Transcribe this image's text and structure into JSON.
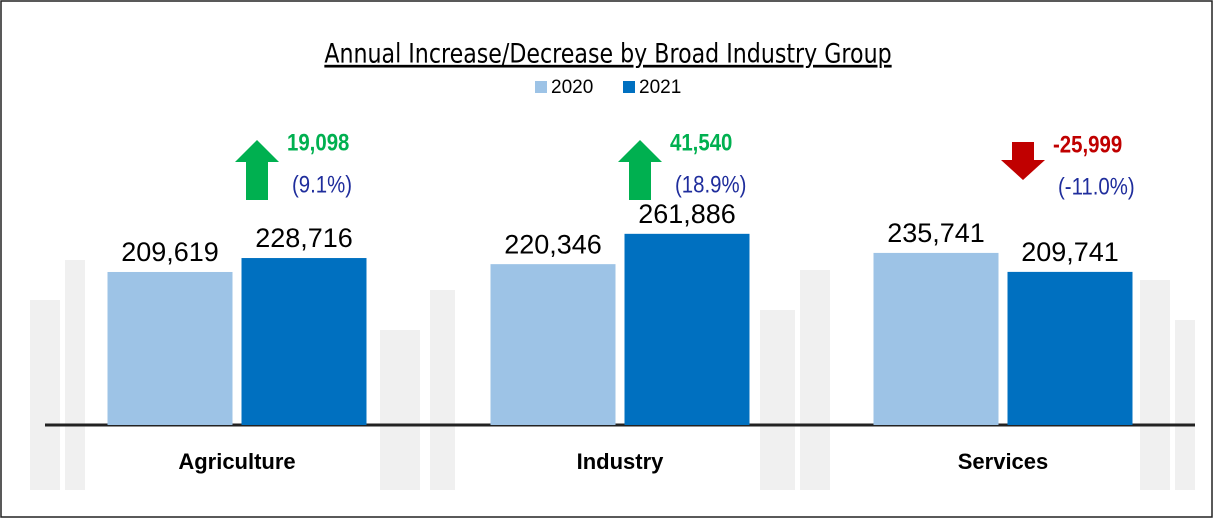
{
  "chart_data": {
    "type": "bar",
    "title": "Annual Increase/Decrease by Broad Industry Group",
    "categories": [
      "Agriculture",
      "Industry",
      "Services"
    ],
    "series": [
      {
        "name": "2020",
        "color": "#9dc3e6",
        "values": [
          209619,
          220346,
          235741
        ],
        "value_labels": [
          "209,619",
          "220,346",
          "235,741"
        ]
      },
      {
        "name": "2021",
        "color": "#0070c0",
        "values": [
          228716,
          261886,
          209741
        ],
        "value_labels": [
          "228,716",
          "261,886",
          "209,741"
        ]
      }
    ],
    "ylim": [
      0,
      300000
    ],
    "changes": [
      {
        "value": 19098,
        "label": "19,098",
        "percent": 9.1,
        "percent_label": "(9.1%)"
      },
      {
        "value": 41540,
        "label": "41,540",
        "percent": 18.9,
        "percent_label": "(18.9%)"
      },
      {
        "value": -25999,
        "label": "-25,999",
        "percent": -11.0,
        "percent_label": "(-11.0%)"
      }
    ],
    "increase_color": "#00b050",
    "decrease_color": "#c00000",
    "percent_color": "#1f2d9c"
  }
}
